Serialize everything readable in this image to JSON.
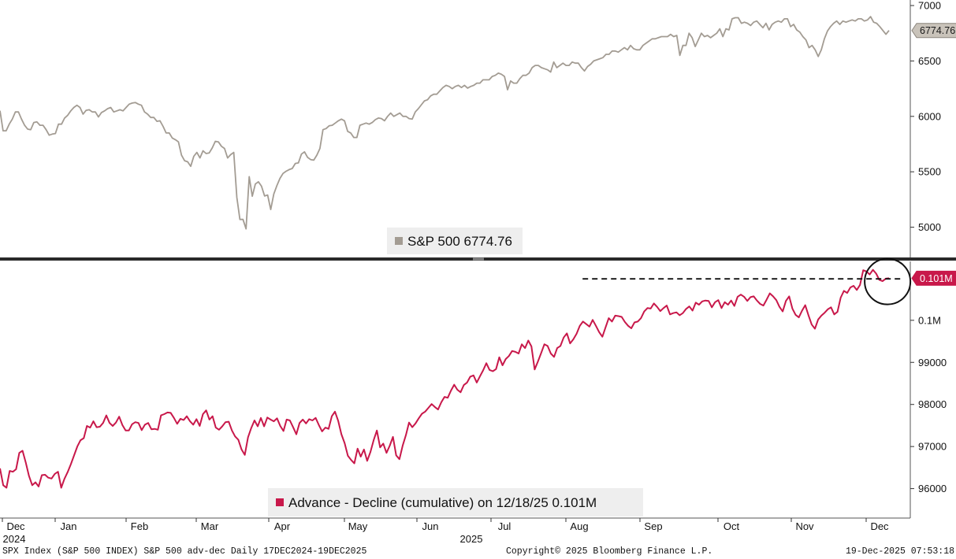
{
  "footer": {
    "description": "SPX Index (S&P 500 INDEX) S&P 500 adv-dec Daily 17DEC2024-19DEC2025",
    "copyright": "Copyright© 2025 Bloomberg Finance L.P.",
    "timestamp": "19-Dec-2025 07:53:18"
  },
  "chart_data": [
    {
      "type": "line",
      "series_name": "S&P 500",
      "legend_label": "S&P 500 6774.76",
      "last_value_label": "6774.76",
      "color": "#a39c93",
      "ylim": [
        4720,
        7050
      ],
      "y_ticks": [
        7000,
        6500,
        6000,
        5500,
        5000
      ],
      "y_tick_labels": [
        "7000",
        "6500",
        "6000",
        "5500",
        "5000"
      ],
      "grid": false,
      "legend_placement": "bottom-center",
      "values": [
        6051,
        5870,
        5870,
        5930,
        5975,
        6040,
        6040,
        5975,
        5920,
        5885,
        5880,
        5945,
        5950,
        5920,
        5920,
        5880,
        5830,
        5840,
        5845,
        5930,
        5930,
        5985,
        6010,
        6050,
        6080,
        6100,
        6080,
        6020,
        6055,
        6060,
        6040,
        6040,
        5995,
        6035,
        6050,
        6070,
        6080,
        6040,
        6050,
        6060,
        6050,
        6080,
        6110,
        6120,
        6125,
        6110,
        6100,
        6040,
        6020,
        5990,
        5990,
        5955,
        5960,
        5910,
        5850,
        5850,
        5805,
        5790,
        5770,
        5650,
        5600,
        5590,
        5550,
        5640,
        5675,
        5625,
        5690,
        5665,
        5670,
        5715,
        5775,
        5770,
        5730,
        5710,
        5625,
        5655,
        5675,
        5270,
        5070,
        5070,
        4985,
        5456,
        5280,
        5390,
        5410,
        5370,
        5282,
        5290,
        5160,
        5300,
        5375,
        5440,
        5485,
        5505,
        5520,
        5530,
        5575,
        5580,
        5660,
        5680,
        5630,
        5610,
        5605,
        5650,
        5710,
        5880,
        5890,
        5915,
        5920,
        5940,
        5960,
        5975,
        5960,
        5865,
        5850,
        5810,
        5810,
        5920,
        5930,
        5940,
        5930,
        5945,
        5970,
        5985,
        5980,
        5960,
        6000,
        6030,
        6000,
        6015,
        6030,
        6000,
        6000,
        5980,
        5975,
        6040,
        6070,
        6105,
        6140,
        6150,
        6185,
        6200,
        6200,
        6230,
        6260,
        6280,
        6270,
        6250,
        6270,
        6280,
        6260,
        6280,
        6255,
        6270,
        6280,
        6300,
        6300,
        6330,
        6330,
        6330,
        6360,
        6370,
        6390,
        6380,
        6360,
        6240,
        6320,
        6300,
        6300,
        6340,
        6370,
        6370,
        6390,
        6440,
        6460,
        6460,
        6440,
        6430,
        6420,
        6400,
        6490,
        6440,
        6460,
        6480,
        6460,
        6460,
        6490,
        6480,
        6480,
        6440,
        6410,
        6450,
        6470,
        6500,
        6510,
        6520,
        6530,
        6560,
        6560,
        6590,
        6590,
        6580,
        6600,
        6620,
        6600,
        6640,
        6610,
        6600,
        6600,
        6640,
        6660,
        6680,
        6700,
        6700,
        6710,
        6720,
        6720,
        6720,
        6740,
        6720,
        6730,
        6550,
        6640,
        6640,
        6750,
        6710,
        6630,
        6690,
        6750,
        6720,
        6730,
        6710,
        6730,
        6750,
        6790,
        6720,
        6790,
        6780,
        6880,
        6890,
        6890,
        6840,
        6850,
        6840,
        6820,
        6850,
        6860,
        6830,
        6800,
        6840,
        6780,
        6830,
        6850,
        6860,
        6850,
        6880,
        6880,
        6810,
        6830,
        6780,
        6760,
        6720,
        6690,
        6620,
        6640,
        6600,
        6540,
        6600,
        6700,
        6770,
        6810,
        6840,
        6860,
        6830,
        6860,
        6850,
        6860,
        6870,
        6860,
        6880,
        6880,
        6860,
        6870,
        6900,
        6850,
        6840,
        6810,
        6775,
        6740,
        6774.76
      ]
    },
    {
      "type": "line",
      "series_name": "Advance - Decline (cumulative)",
      "legend_label": "Advance - Decline (cumulative) on 12/18/25 0.101M",
      "last_value_label": "0.101M",
      "color": "#c8184a",
      "ylim": [
        95300,
        101400
      ],
      "y_ticks": [
        100000,
        99000,
        98000,
        97000,
        96000
      ],
      "y_tick_labels": [
        "0.1M",
        "99000",
        "98000",
        "97000",
        "96000"
      ],
      "grid": false,
      "legend_placement": "bottom-center",
      "annotations": {
        "dashed_line_value": 100985,
        "dashed_line_x_range": [
          0.64,
          0.99
        ],
        "circle_center_x": 0.975,
        "circle_center_value": 100920
      },
      "values": [
        96480,
        96080,
        96020,
        96420,
        96400,
        96460,
        96850,
        96900,
        96620,
        96300,
        96080,
        96150,
        96050,
        96320,
        96330,
        96260,
        96240,
        96350,
        96400,
        96020,
        96230,
        96390,
        96580,
        96790,
        97000,
        97150,
        97200,
        97490,
        97450,
        97600,
        97460,
        97470,
        97560,
        97740,
        97560,
        97490,
        97570,
        97710,
        97510,
        97380,
        97380,
        97530,
        97580,
        97560,
        97390,
        97520,
        97560,
        97410,
        97420,
        97400,
        97740,
        97770,
        97810,
        97800,
        97680,
        97540,
        97660,
        97630,
        97720,
        97600,
        97520,
        97650,
        97490,
        97770,
        97860,
        97640,
        97720,
        97450,
        97400,
        97480,
        97580,
        97590,
        97380,
        97240,
        97160,
        96930,
        96800,
        97220,
        97440,
        97620,
        97480,
        97680,
        97480,
        97690,
        97640,
        97600,
        97670,
        97490,
        97370,
        97640,
        97620,
        97460,
        97290,
        97560,
        97640,
        97550,
        97650,
        97620,
        97680,
        97510,
        97360,
        97450,
        97420,
        97720,
        97830,
        97610,
        97290,
        97080,
        96780,
        96680,
        96600,
        96950,
        96760,
        96930,
        96660,
        96870,
        97150,
        97380,
        96980,
        97070,
        96850,
        97020,
        97230,
        96790,
        96700,
        97020,
        97270,
        97570,
        97460,
        97550,
        97670,
        97780,
        97830,
        97920,
        98010,
        97940,
        97880,
        98050,
        98180,
        98160,
        98330,
        98470,
        98350,
        98290,
        98460,
        98520,
        98660,
        98690,
        98520,
        98670,
        98810,
        98980,
        98820,
        98790,
        98840,
        99120,
        98930,
        99080,
        99150,
        99270,
        99250,
        99210,
        99430,
        99340,
        99520,
        99380,
        98830,
        99020,
        99220,
        99430,
        99390,
        99210,
        99130,
        99340,
        99390,
        99590,
        99690,
        99450,
        99550,
        99680,
        99870,
        99970,
        99910,
        99850,
        100010,
        99870,
        99720,
        99610,
        99830,
        100050,
        99970,
        100110,
        100100,
        100080,
        99960,
        99870,
        99810,
        99950,
        99970,
        100050,
        100210,
        100290,
        100280,
        100400,
        100320,
        100220,
        100290,
        100350,
        100140,
        100170,
        100190,
        100120,
        100170,
        100270,
        100330,
        100230,
        100420,
        100370,
        100450,
        100470,
        100460,
        100310,
        100430,
        100480,
        100290,
        100430,
        100370,
        100470,
        100340,
        100560,
        100610,
        100560,
        100460,
        100550,
        100570,
        100470,
        100390,
        100350,
        100490,
        100640,
        100570,
        100480,
        100320,
        100210,
        100460,
        100570,
        100280,
        100130,
        100070,
        100230,
        100360,
        100120,
        99900,
        99800,
        100020,
        100110,
        100180,
        100260,
        100310,
        100140,
        100200,
        100540,
        100700,
        100650,
        100780,
        100820,
        100720,
        100840,
        101190,
        101160,
        101090,
        101200,
        101110,
        100960,
        100930,
        100990,
        101000
      ]
    }
  ],
  "x_axis": {
    "months": [
      "Dec",
      "Jan",
      "Feb",
      "Mar",
      "Apr",
      "May",
      "Jun",
      "Jul",
      "Aug",
      "Sep",
      "Oct",
      "Nov",
      "Dec"
    ],
    "years": [
      "2024",
      "2025"
    ]
  }
}
